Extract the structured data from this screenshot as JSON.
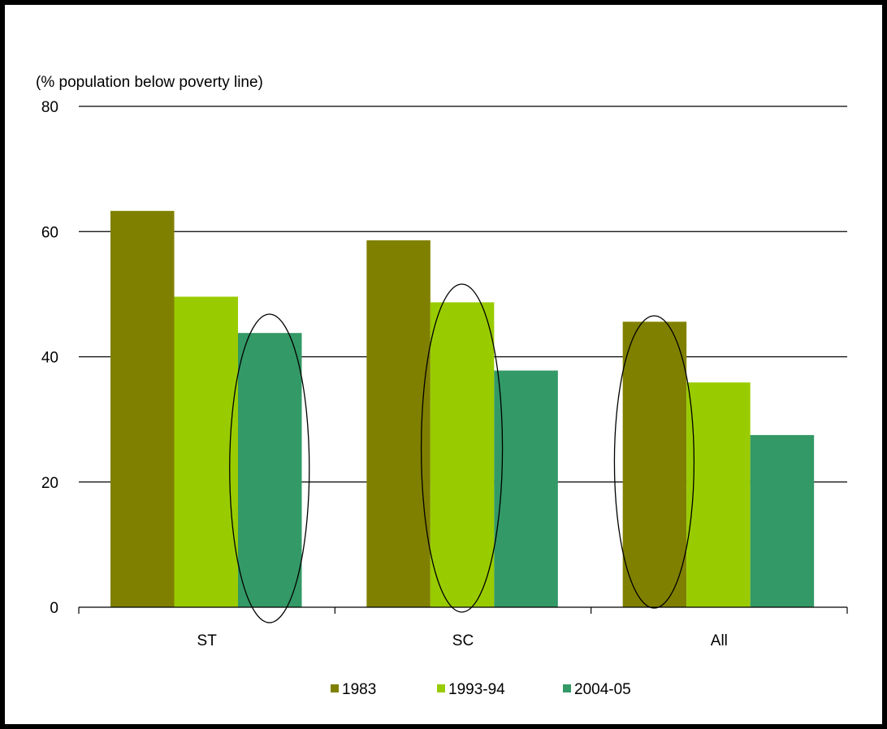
{
  "chart_data": {
    "type": "bar",
    "title": "",
    "ylabel": "(% population below poverty line)",
    "xlabel": "",
    "categories": [
      "ST",
      "SC",
      "All"
    ],
    "series": [
      {
        "name": "1983",
        "color": "#808000",
        "values": [
          63.3,
          58.6,
          45.6
        ]
      },
      {
        "name": "1993-94",
        "color": "#99cc00",
        "values": [
          49.6,
          48.7,
          35.9
        ]
      },
      {
        "name": "2004-05",
        "color": "#339966",
        "values": [
          43.8,
          37.8,
          27.5
        ]
      }
    ],
    "ylim": [
      0,
      80
    ],
    "yticks": [
      0,
      20,
      40,
      60,
      80
    ],
    "grid": true,
    "legend": "bottom",
    "annotations": [
      {
        "type": "ellipse",
        "category": "ST",
        "series": "2004-05"
      },
      {
        "type": "ellipse",
        "category": "SC",
        "series": "1993-94"
      },
      {
        "type": "ellipse",
        "category": "All",
        "series": "1983"
      }
    ]
  }
}
